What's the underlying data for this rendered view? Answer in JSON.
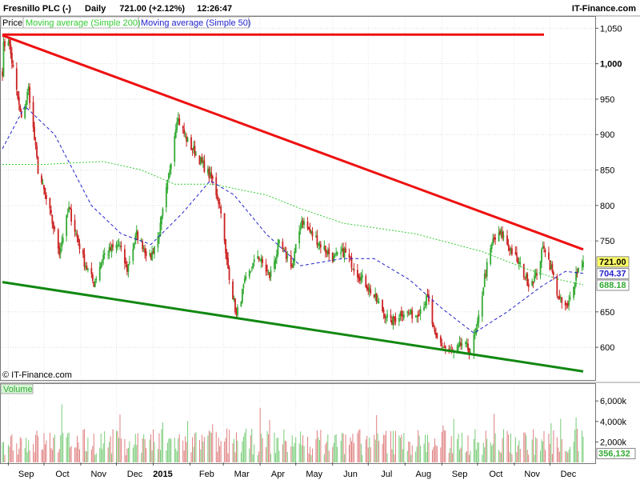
{
  "header": {
    "instrument": "Fresnillo PLC (-)",
    "period": "Daily",
    "quote": "721.00 (+2.12%)",
    "time": "12:26:47",
    "brand": "IT-Finance.com"
  },
  "legend": {
    "price": "Price",
    "ma200": "Moving average (Simple 200)",
    "ma50": "Moving average (Simple 50)"
  },
  "copyright": "© IT-Finance.com",
  "volume_label": "Volume",
  "colors": {
    "up": "#33aa33",
    "down": "#cc2222",
    "ma200": "#33cc33",
    "ma50": "#2222cc",
    "upper_trendline": "#ee1111",
    "lower_trendline": "#118811",
    "resistance": "#ee1111"
  },
  "chart_data": {
    "type": "candlestick",
    "price_axis": {
      "range": [
        555,
        1065
      ],
      "ticks": [
        {
          "value": 1050,
          "label": "1,050"
        },
        {
          "value": 1000,
          "label": "1,000"
        },
        {
          "value": 950,
          "label": "950"
        },
        {
          "value": 900,
          "label": "900"
        },
        {
          "value": 850,
          "label": "850"
        },
        {
          "value": 800,
          "label": "800"
        },
        {
          "value": 750,
          "label": "750"
        },
        {
          "value": 650,
          "label": "650"
        },
        {
          "value": 600,
          "label": "600"
        }
      ]
    },
    "time_axis": {
      "labels": [
        "Sep",
        "Oct",
        "Nov",
        "Dec",
        "2015",
        "Feb",
        "Mar",
        "Apr",
        "May",
        "Jun",
        "Jul",
        "Aug",
        "Sep",
        "Oct",
        "Nov",
        "Dec"
      ]
    },
    "price_anchors": [
      {
        "date": "2014-08-27",
        "value": 990
      },
      {
        "date": "2014-08-28",
        "value": 1025
      },
      {
        "date": "2014-09-01",
        "value": 1035
      },
      {
        "date": "2014-09-08",
        "value": 960
      },
      {
        "date": "2014-09-12",
        "value": 920
      },
      {
        "date": "2014-09-18",
        "value": 965
      },
      {
        "date": "2014-09-26",
        "value": 850
      },
      {
        "date": "2014-10-06",
        "value": 790
      },
      {
        "date": "2014-10-14",
        "value": 735
      },
      {
        "date": "2014-10-22",
        "value": 795
      },
      {
        "date": "2014-11-04",
        "value": 720
      },
      {
        "date": "2014-11-12",
        "value": 690
      },
      {
        "date": "2014-11-20",
        "value": 730
      },
      {
        "date": "2014-12-03",
        "value": 745
      },
      {
        "date": "2014-12-10",
        "value": 710
      },
      {
        "date": "2014-12-18",
        "value": 760
      },
      {
        "date": "2014-12-29",
        "value": 725
      },
      {
        "date": "2015-01-06",
        "value": 760
      },
      {
        "date": "2015-01-13",
        "value": 830
      },
      {
        "date": "2015-01-21",
        "value": 925
      },
      {
        "date": "2015-01-30",
        "value": 890
      },
      {
        "date": "2015-02-09",
        "value": 865
      },
      {
        "date": "2015-02-20",
        "value": 835
      },
      {
        "date": "2015-02-27",
        "value": 795
      },
      {
        "date": "2015-03-03",
        "value": 730
      },
      {
        "date": "2015-03-12",
        "value": 645
      },
      {
        "date": "2015-03-19",
        "value": 690
      },
      {
        "date": "2015-03-30",
        "value": 730
      },
      {
        "date": "2015-04-09",
        "value": 700
      },
      {
        "date": "2015-04-17",
        "value": 745
      },
      {
        "date": "2015-04-28",
        "value": 715
      },
      {
        "date": "2015-05-06",
        "value": 780
      },
      {
        "date": "2015-05-14",
        "value": 760
      },
      {
        "date": "2015-05-22",
        "value": 745
      },
      {
        "date": "2015-06-02",
        "value": 725
      },
      {
        "date": "2015-06-11",
        "value": 735
      },
      {
        "date": "2015-06-22",
        "value": 705
      },
      {
        "date": "2015-07-03",
        "value": 680
      },
      {
        "date": "2015-07-10",
        "value": 660
      },
      {
        "date": "2015-07-20",
        "value": 635
      },
      {
        "date": "2015-07-30",
        "value": 650
      },
      {
        "date": "2015-08-10",
        "value": 645
      },
      {
        "date": "2015-08-20",
        "value": 670
      },
      {
        "date": "2015-08-26",
        "value": 615
      },
      {
        "date": "2015-09-03",
        "value": 600
      },
      {
        "date": "2015-09-11",
        "value": 590
      },
      {
        "date": "2015-09-18",
        "value": 605
      },
      {
        "date": "2015-09-25",
        "value": 595
      },
      {
        "date": "2015-10-01",
        "value": 630
      },
      {
        "date": "2015-10-07",
        "value": 700
      },
      {
        "date": "2015-10-14",
        "value": 750
      },
      {
        "date": "2015-10-21",
        "value": 760
      },
      {
        "date": "2015-10-30",
        "value": 735
      },
      {
        "date": "2015-11-06",
        "value": 715
      },
      {
        "date": "2015-11-13",
        "value": 690
      },
      {
        "date": "2015-11-19",
        "value": 700
      },
      {
        "date": "2015-11-26",
        "value": 745
      },
      {
        "date": "2015-12-03",
        "value": 705
      },
      {
        "date": "2015-12-09",
        "value": 665
      },
      {
        "date": "2015-12-16",
        "value": 655
      },
      {
        "date": "2015-12-23",
        "value": 705
      },
      {
        "date": "2015-12-29",
        "value": 721
      }
    ],
    "moving_averages": [
      {
        "name": "Moving average (Simple 200)",
        "style": "dotted",
        "points": [
          {
            "date": "2014-08-27",
            "value": 858
          },
          {
            "date": "2014-10-01",
            "value": 858
          },
          {
            "date": "2014-11-20",
            "value": 862
          },
          {
            "date": "2014-12-22",
            "value": 850
          },
          {
            "date": "2015-01-19",
            "value": 830
          },
          {
            "date": "2015-02-20",
            "value": 830
          },
          {
            "date": "2015-04-06",
            "value": 815
          },
          {
            "date": "2015-05-06",
            "value": 795
          },
          {
            "date": "2015-06-10",
            "value": 775
          },
          {
            "date": "2015-08-10",
            "value": 760
          },
          {
            "date": "2015-10-05",
            "value": 735
          },
          {
            "date": "2015-11-09",
            "value": 712
          },
          {
            "date": "2015-12-10",
            "value": 695
          },
          {
            "date": "2015-12-29",
            "value": 688.18
          }
        ]
      },
      {
        "name": "Moving average (Simple 50)",
        "style": "dashed",
        "points": [
          {
            "date": "2014-08-27",
            "value": 880
          },
          {
            "date": "2014-09-15",
            "value": 940
          },
          {
            "date": "2014-10-10",
            "value": 900
          },
          {
            "date": "2014-11-10",
            "value": 800
          },
          {
            "date": "2014-12-05",
            "value": 760
          },
          {
            "date": "2014-12-30",
            "value": 745
          },
          {
            "date": "2015-01-26",
            "value": 790
          },
          {
            "date": "2015-02-18",
            "value": 835
          },
          {
            "date": "2015-03-10",
            "value": 815
          },
          {
            "date": "2015-04-06",
            "value": 760
          },
          {
            "date": "2015-05-05",
            "value": 715
          },
          {
            "date": "2015-06-09",
            "value": 725
          },
          {
            "date": "2015-07-06",
            "value": 725
          },
          {
            "date": "2015-08-05",
            "value": 695
          },
          {
            "date": "2015-09-01",
            "value": 655
          },
          {
            "date": "2015-09-28",
            "value": 620
          },
          {
            "date": "2015-10-26",
            "value": 650
          },
          {
            "date": "2015-11-23",
            "value": 685
          },
          {
            "date": "2015-12-14",
            "value": 707
          },
          {
            "date": "2015-12-29",
            "value": 704.37
          }
        ]
      }
    ],
    "trendlines": [
      {
        "name": "resistance",
        "points": [
          {
            "date": "2014-08-27",
            "value": 1041
          },
          {
            "date": "2015-12-02",
            "value": 1041
          }
        ]
      },
      {
        "name": "upper-trendline",
        "points": [
          {
            "date": "2014-08-27",
            "value": 1040
          },
          {
            "date": "2015-12-29",
            "value": 738
          }
        ]
      },
      {
        "name": "lower-trendline",
        "points": [
          {
            "date": "2014-08-27",
            "value": 692
          },
          {
            "date": "2015-12-29",
            "value": 566
          }
        ]
      }
    ],
    "price_tags": [
      {
        "value": 721.0,
        "label": "721.00"
      },
      {
        "value": 704.37,
        "label": "704.37"
      },
      {
        "value": 688.18,
        "label": "688.18"
      }
    ],
    "volume_axis": {
      "range": [
        0,
        7500
      ],
      "ticks": [
        {
          "value": 6000,
          "label": "6,000k"
        },
        {
          "value": 4000,
          "label": "4,000k"
        },
        {
          "value": 2000,
          "label": "2,000k"
        }
      ],
      "last_value_label": "356,132",
      "last_value": 356.132
    }
  }
}
